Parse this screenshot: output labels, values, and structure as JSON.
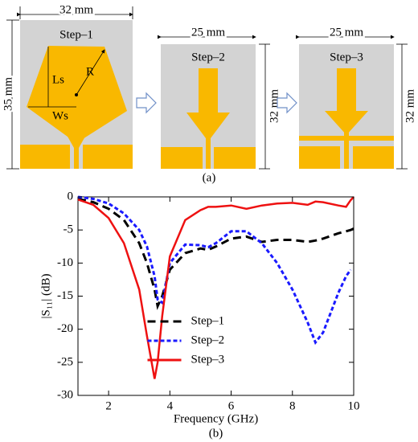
{
  "figure_a": {
    "panels": [
      {
        "title": "Step–1",
        "width": "32 mm",
        "height": "35 mm",
        "labels": [
          "Ls",
          "Ws",
          "R"
        ]
      },
      {
        "title": "Step–2",
        "width": "25 mm",
        "height": "32 mm"
      },
      {
        "title": "Step–3",
        "width": "25 mm",
        "height": "32 mm"
      }
    ],
    "caption": "(a)"
  },
  "chart_data": {
    "type": "line",
    "caption": "(b)",
    "xlabel": "Frequency (GHz)",
    "ylabel": "|S₁₁| (dB)",
    "x": [
      1,
      1.5,
      2,
      2.5,
      3,
      3.25,
      3.5,
      3.6,
      3.75,
      4,
      4.5,
      5,
      5.25,
      5.5,
      6,
      6.5,
      7,
      7.5,
      8,
      8.5,
      8.75,
      9,
      9.5,
      9.75,
      9.9,
      10
    ],
    "series": [
      {
        "name": "Step–1",
        "color": "#000000",
        "dash": "dashed",
        "values": [
          -0.3,
          -0.8,
          -1.8,
          -3.5,
          -7,
          -10,
          -14,
          -16.5,
          -15,
          -11,
          -8.5,
          -7.8,
          -8,
          -7.5,
          -6.3,
          -6,
          -6.8,
          -6.5,
          -6.5,
          -6.8,
          -6.6,
          -6.3,
          -5.5,
          -5.2,
          -5,
          -4.8
        ]
      },
      {
        "name": "Step–2",
        "color": "#1a1aff",
        "dash": "dotted",
        "values": [
          0,
          -0.3,
          -1,
          -2.5,
          -5,
          -7.5,
          -12,
          -15.5,
          -16,
          -10,
          -7.2,
          -7.3,
          -7.6,
          -7,
          -5.2,
          -5.2,
          -7,
          -10,
          -14,
          -19,
          -22,
          -20.5,
          -14.5,
          -12,
          -11,
          null
        ]
      },
      {
        "name": "Step–3",
        "color": "#ee1111",
        "dash": "solid",
        "values": [
          -0.4,
          -1.2,
          -3.2,
          -7,
          -14,
          -21,
          -27.5,
          -25,
          -18,
          -9,
          -3.5,
          -2,
          -1.5,
          -1.5,
          -1.3,
          -1.8,
          -1.3,
          -1,
          -0.9,
          -1.2,
          -0.7,
          -0.8,
          -1.3,
          -1.5,
          -0.5,
          0
        ]
      }
    ],
    "xlim": [
      1,
      10
    ],
    "xticks": [
      2,
      4,
      6,
      8,
      10
    ],
    "ylim": [
      -30,
      0
    ],
    "yticks": [
      0,
      -5,
      -10,
      -15,
      -20,
      -25,
      -30
    ],
    "legend": "lower center"
  }
}
